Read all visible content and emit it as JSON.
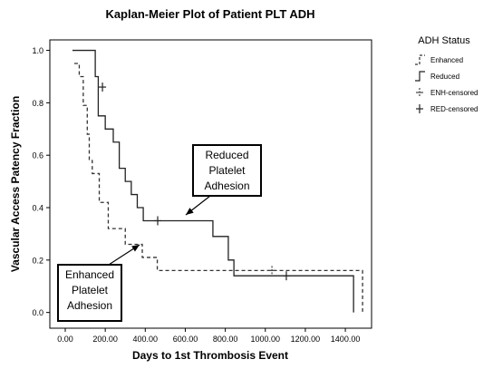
{
  "chart_data": {
    "type": "step",
    "title": "Kaplan-Meier Plot of Patient PLT ADH",
    "x_label": "Days to 1st Thrombosis Event",
    "y_label": "Vascular Access Patency Fraction",
    "legend_title": "ADH Status",
    "xlim": [
      -77,
      1531
    ],
    "ylim": [
      -0.06,
      1.04
    ],
    "xticks": [
      {
        "value": 0,
        "label": "0.00"
      },
      {
        "value": 200,
        "label": "200.00"
      },
      {
        "value": 400,
        "label": "400.00"
      },
      {
        "value": 600,
        "label": "600.00"
      },
      {
        "value": 800,
        "label": "800.00"
      },
      {
        "value": 1000,
        "label": "1000.00"
      },
      {
        "value": 1200,
        "label": "1200.00"
      },
      {
        "value": 1400,
        "label": "1400.00"
      }
    ],
    "yticks": [
      {
        "value": 0,
        "label": "0.0"
      },
      0.2,
      0.4,
      0.6,
      0.8,
      {
        "value": 1,
        "label": "1.0"
      }
    ],
    "series": [
      {
        "name": "Enhanced",
        "style": "dashed",
        "color": "#333333",
        "x": [
          45,
          70,
          90,
          110,
          120,
          135,
          170,
          215,
          300,
          385,
          460,
          1486
        ],
        "values": [
          0.95,
          0.9,
          0.79,
          0.68,
          0.58,
          0.53,
          0.42,
          0.32,
          0.26,
          0.21,
          0.16,
          0
        ]
      },
      {
        "name": "Reduced",
        "style": "solid",
        "color": "#222222",
        "x": [
          36,
          150,
          165,
          200,
          240,
          270,
          300,
          330,
          360,
          390,
          738,
          815,
          843,
          1441
        ],
        "values": [
          1,
          0.9,
          0.75,
          0.7,
          0.65,
          0.55,
          0.5,
          0.45,
          0.4,
          0.35,
          0.29,
          0.2,
          0.14,
          0
        ]
      },
      {
        "name": "ENH-censored",
        "style": "censor-dashed",
        "color": "#444444",
        "x": [
          1033
        ],
        "values": [
          0.16
        ]
      },
      {
        "name": "RED-censored",
        "style": "censor-solid",
        "color": "#222222",
        "x": [
          186,
          462,
          1105
        ],
        "values": [
          0.86,
          0.35,
          0.14
        ]
      }
    ],
    "annotations": [
      {
        "lines": [
          "Reduced",
          "Platelet",
          "Adhesion"
        ]
      },
      {
        "lines": [
          "Enhanced",
          "Platelet",
          "Adhesion"
        ]
      }
    ]
  }
}
